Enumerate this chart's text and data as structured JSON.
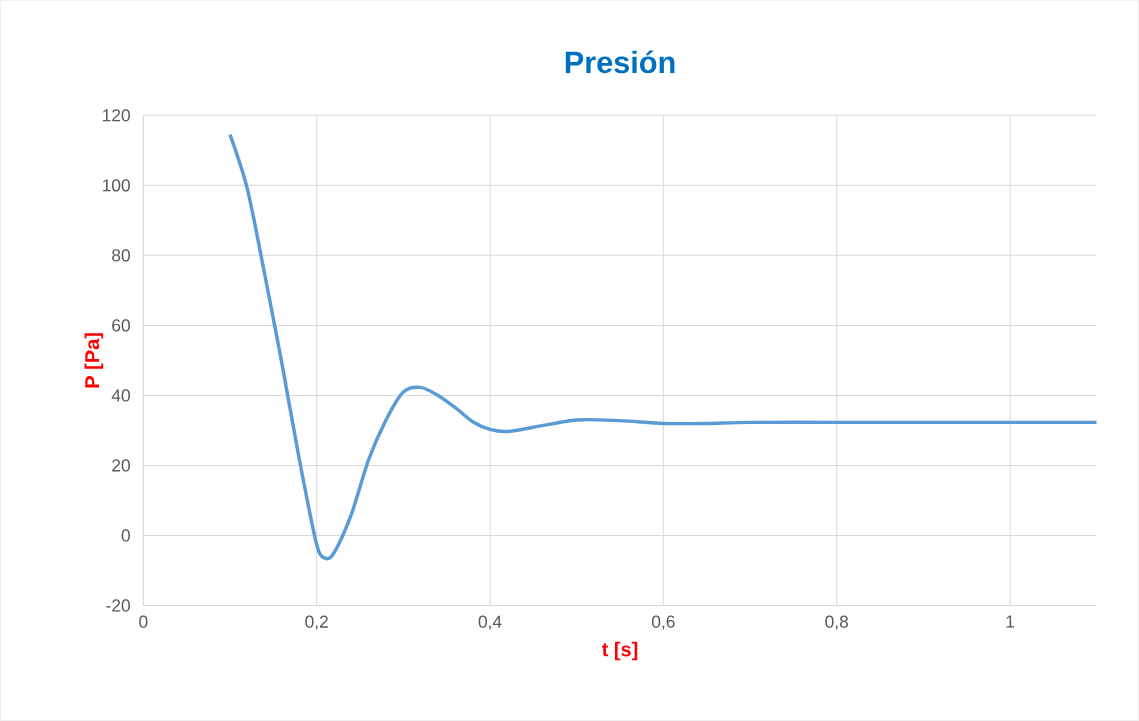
{
  "chart_data": {
    "type": "line",
    "title": "Presión",
    "xlabel": "t [s]",
    "ylabel": "P [Pa]",
    "x": [
      0.1,
      0.12,
      0.14,
      0.16,
      0.18,
      0.2,
      0.21,
      0.22,
      0.24,
      0.26,
      0.28,
      0.3,
      0.32,
      0.34,
      0.36,
      0.38,
      0.4,
      0.42,
      0.45,
      0.5,
      0.55,
      0.6,
      0.65,
      0.7,
      0.8,
      0.9,
      1.0,
      1.1
    ],
    "series": [
      {
        "color": "#5b9bd5",
        "values": [
          114.5,
          99,
          74.6,
          49,
          21.7,
          -2.6,
          -6.5,
          -5,
          6,
          21.7,
          33,
          41,
          42.3,
          40,
          36.5,
          32.5,
          30.3,
          29.7,
          30.9,
          33,
          32.8,
          32,
          32,
          32.3,
          32.3,
          32.3,
          32.3,
          32.3
        ]
      }
    ],
    "xlim": [
      0,
      1.1
    ],
    "ylim": [
      -20,
      120
    ],
    "xticks": [
      0,
      {
        "value": 0.2,
        "label": "0,2"
      },
      {
        "value": 0.4,
        "label": "0,4"
      },
      {
        "value": 0.6,
        "label": "0,6"
      },
      {
        "value": 0.8,
        "label": "0,8"
      },
      1
    ],
    "yticks": [
      -20,
      0,
      20,
      40,
      60,
      80,
      100,
      120
    ],
    "grid": true,
    "marker": "none",
    "line_style": "solid"
  }
}
